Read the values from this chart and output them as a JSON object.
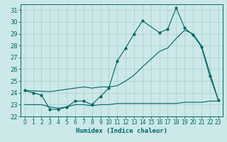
{
  "title": "",
  "xlabel": "Humidex (Indice chaleur)",
  "bg_color": "#cce8e8",
  "grid_color": "#aacccc",
  "line_color": "#006666",
  "xlim": [
    -0.5,
    23.5
  ],
  "ylim": [
    22,
    31.5
  ],
  "xticks": [
    0,
    1,
    2,
    3,
    4,
    5,
    6,
    7,
    8,
    9,
    10,
    11,
    12,
    13,
    14,
    15,
    16,
    17,
    18,
    19,
    20,
    21,
    22,
    23
  ],
  "yticks": [
    22,
    23,
    24,
    25,
    26,
    27,
    28,
    29,
    30,
    31
  ],
  "line1_x": [
    0,
    1,
    2,
    3,
    4,
    5,
    6,
    7,
    8,
    9,
    10,
    11,
    12,
    13,
    14,
    16,
    17,
    18,
    19,
    20,
    21,
    22,
    23
  ],
  "line1_y": [
    24.2,
    24.0,
    23.8,
    22.6,
    22.6,
    22.8,
    23.3,
    23.3,
    23.0,
    23.7,
    24.4,
    26.7,
    27.8,
    29.0,
    30.1,
    29.1,
    29.4,
    31.2,
    29.5,
    28.9,
    27.9,
    25.4,
    23.4
  ],
  "line2_x": [
    0,
    3,
    4,
    5,
    6,
    7,
    8,
    9,
    10,
    11,
    12,
    13,
    14,
    16,
    17,
    18,
    19,
    20,
    21,
    22,
    23
  ],
  "line2_y": [
    24.2,
    24.1,
    24.2,
    24.3,
    24.4,
    24.5,
    24.4,
    24.5,
    24.5,
    24.6,
    25.0,
    25.5,
    26.2,
    27.5,
    27.8,
    28.6,
    29.3,
    29.0,
    28.0,
    25.7,
    23.4
  ],
  "line3_x": [
    0,
    1,
    2,
    3,
    4,
    5,
    6,
    7,
    8,
    9,
    10,
    11,
    12,
    13,
    14,
    15,
    16,
    17,
    18,
    19,
    20,
    21,
    22,
    23
  ],
  "line3_y": [
    23.0,
    23.0,
    23.0,
    22.8,
    22.7,
    22.8,
    23.0,
    23.0,
    22.9,
    23.0,
    23.0,
    23.1,
    23.1,
    23.1,
    23.1,
    23.1,
    23.1,
    23.1,
    23.1,
    23.2,
    23.2,
    23.2,
    23.3,
    23.3
  ],
  "marker1_x": [
    0,
    1,
    2,
    3,
    4,
    5,
    6,
    7,
    8,
    9,
    10,
    11,
    12,
    13,
    14,
    16,
    17,
    18,
    19,
    20,
    21,
    22,
    23
  ],
  "marker1_y": [
    24.2,
    24.0,
    23.8,
    22.6,
    22.6,
    22.8,
    23.3,
    23.3,
    23.0,
    23.7,
    24.4,
    26.7,
    27.8,
    29.0,
    30.1,
    29.1,
    29.4,
    31.2,
    29.5,
    28.9,
    27.9,
    25.4,
    23.4
  ]
}
